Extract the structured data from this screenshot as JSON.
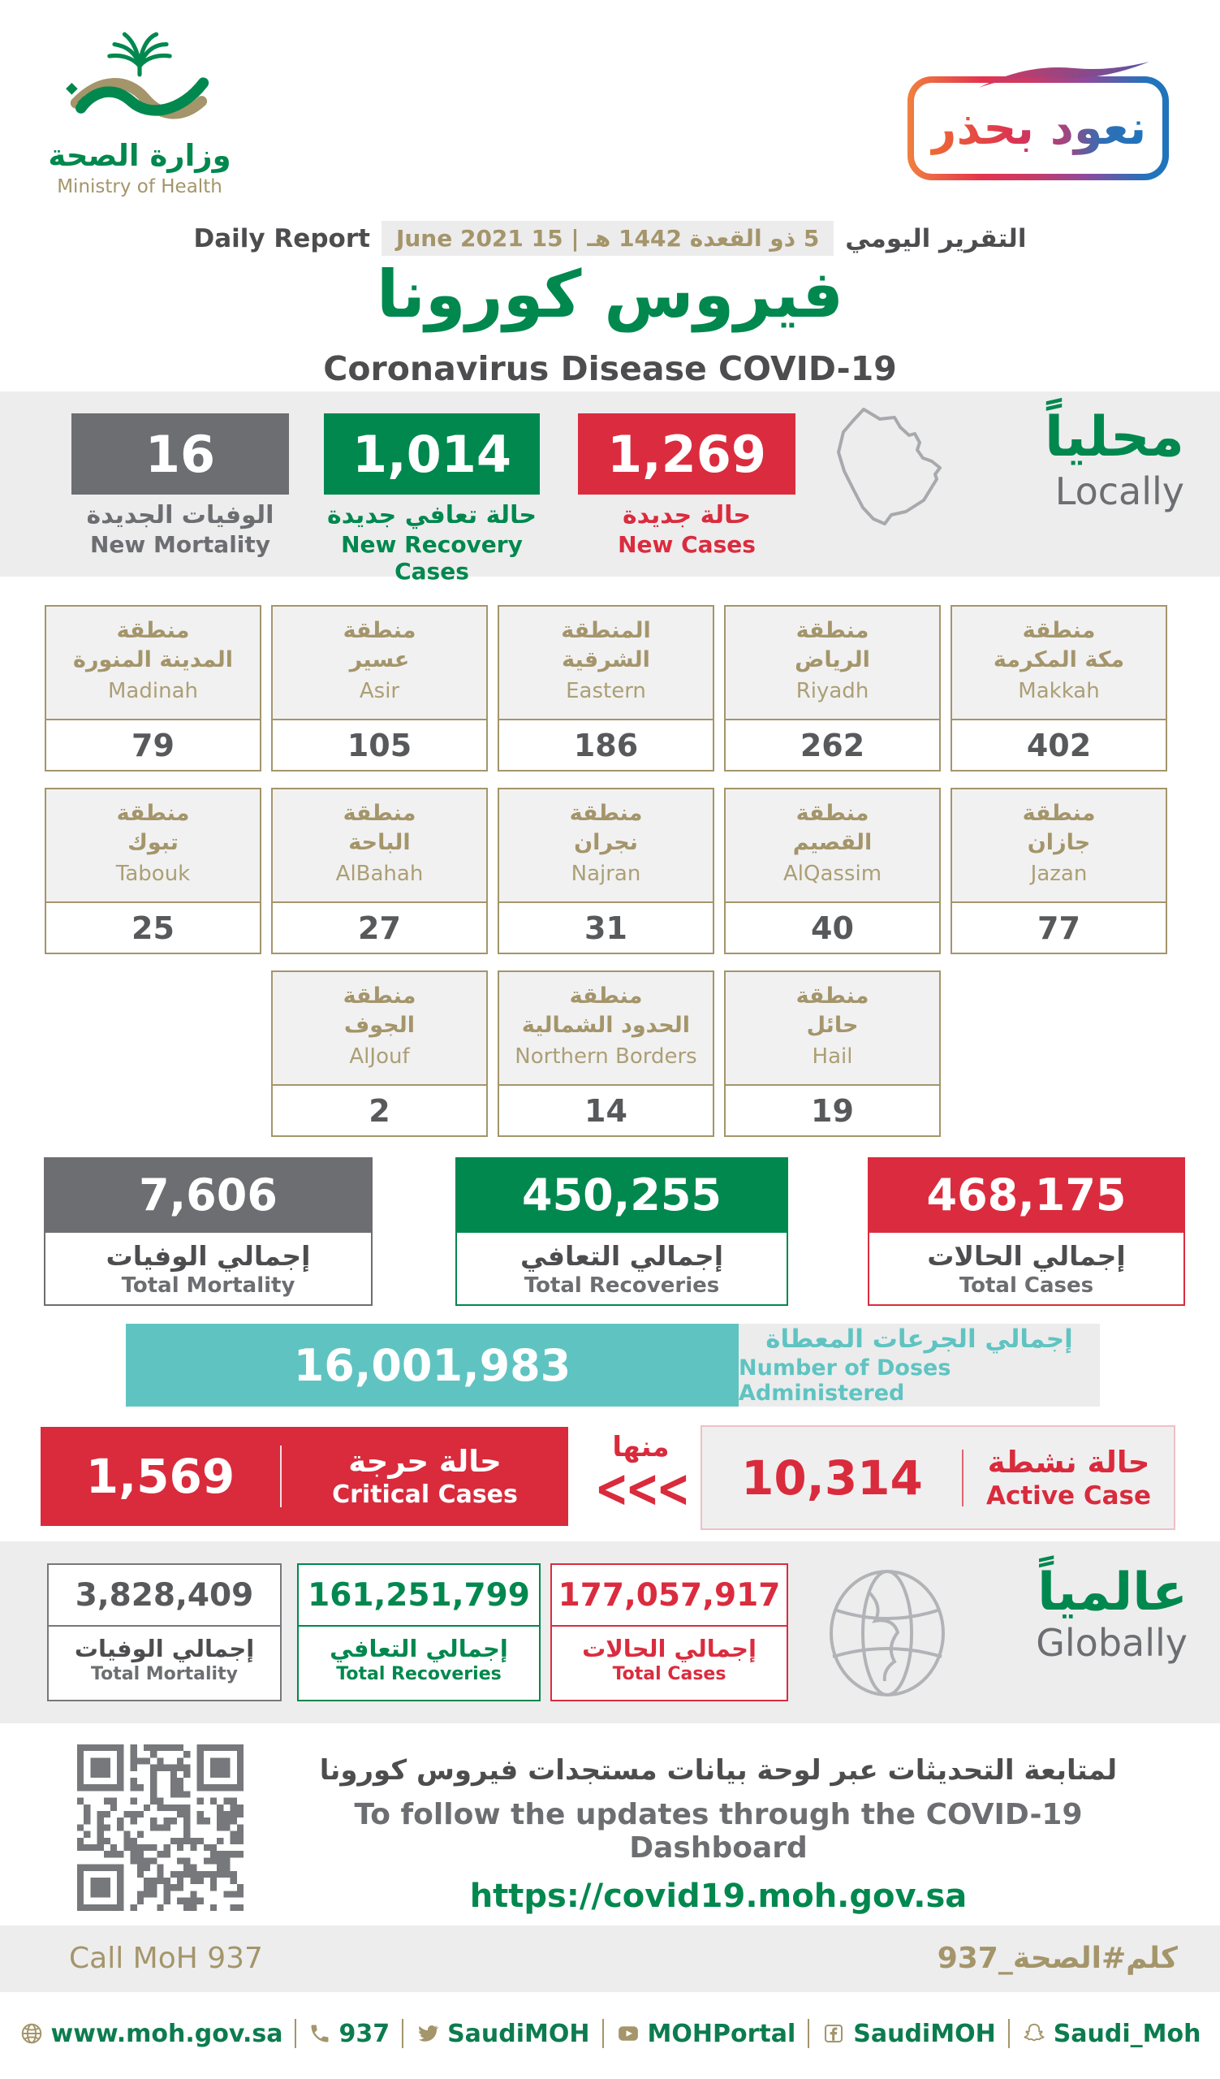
{
  "header": {
    "logo_ar": "وزارة الصحة",
    "logo_en": "Ministry of Health",
    "badge": "نعود بحذر",
    "report_label_en": "Daily Report",
    "report_date": "5 ذو القعدة 1442 هـ | 15 June 2021",
    "report_label_ar": "التقرير اليومي",
    "title_ar": "فيروس كورونا",
    "title_en": "Coronavirus Disease COVID-19"
  },
  "locally": {
    "label_ar": "محلياً",
    "label_en": "Locally",
    "stats": [
      {
        "value": "16",
        "label_ar": "الوفيات الجديدة",
        "label_en": "New Mortality"
      },
      {
        "value": "1,014",
        "label_ar": "حالة تعافي جديدة",
        "label_en": "New Recovery Cases"
      },
      {
        "value": "1,269",
        "label_ar": "حالة جديدة",
        "label_en": "New Cases"
      }
    ]
  },
  "regions": [
    {
      "ar1": "منطقة",
      "ar2": "المدينة المنورة",
      "en": "Madinah",
      "value": "79"
    },
    {
      "ar1": "منطقة",
      "ar2": "عسير",
      "en": "Asir",
      "value": "105"
    },
    {
      "ar1": "المنطقة",
      "ar2": "الشرقية",
      "en": "Eastern",
      "value": "186"
    },
    {
      "ar1": "منطقة",
      "ar2": "الرياض",
      "en": "Riyadh",
      "value": "262"
    },
    {
      "ar1": "منطقة",
      "ar2": "مكة المكرمة",
      "en": "Makkah",
      "value": "402"
    },
    {
      "ar1": "منطقة",
      "ar2": "تبوك",
      "en": "Tabouk",
      "value": "25"
    },
    {
      "ar1": "منطقة",
      "ar2": "الباحة",
      "en": "AlBahah",
      "value": "27"
    },
    {
      "ar1": "منطقة",
      "ar2": "نجران",
      "en": "Najran",
      "value": "31"
    },
    {
      "ar1": "منطقة",
      "ar2": "القصيم",
      "en": "AlQassim",
      "value": "40"
    },
    {
      "ar1": "منطقة",
      "ar2": "جازان",
      "en": "Jazan",
      "value": "77"
    },
    {
      "ar1": "منطقة",
      "ar2": "الجوف",
      "en": "AlJouf",
      "value": "2"
    },
    {
      "ar1": "منطقة",
      "ar2": "الحدود الشمالية",
      "en": "Northern Borders",
      "value": "14"
    },
    {
      "ar1": "منطقة",
      "ar2": "حائل",
      "en": "Hail",
      "value": "19"
    }
  ],
  "totals": [
    {
      "value": "7,606",
      "label_ar": "إجمالي الوفيات",
      "label_en": "Total Mortality"
    },
    {
      "value": "450,255",
      "label_ar": "إجمالي التعافي",
      "label_en": "Total Recoveries"
    },
    {
      "value": "468,175",
      "label_ar": "إجمالي الحالات",
      "label_en": "Total Cases"
    }
  ],
  "doses": {
    "value": "16,001,983",
    "label_ar": "إجمالي الجرعات المعطاة",
    "label_en": "Number of Doses Administered"
  },
  "critical": {
    "value": "1,569",
    "label_ar": "حالة حرجة",
    "label_en": "Critical Cases",
    "of_which_ar": "منها",
    "chevrons": "<<<"
  },
  "active": {
    "value": "10,314",
    "label_ar": "حالة نشطة",
    "label_en": "Active Case"
  },
  "globally": {
    "label_ar": "عالمياً",
    "label_en": "Globally",
    "cards": [
      {
        "value": "3,828,409",
        "label_ar": "إجمالي الوفيات",
        "label_en": "Total Mortality"
      },
      {
        "value": "161,251,799",
        "label_ar": "إجمالي التعافي",
        "label_en": "Total Recoveries"
      },
      {
        "value": "177,057,917",
        "label_ar": "إجمالي الحالات",
        "label_en": "Total Cases"
      }
    ]
  },
  "dashboard": {
    "line_ar": "لمتابعة التحديثات عبر لوحة بيانات مستجدات فيروس كورونا",
    "line_en": "To follow the updates through the COVID-19 Dashboard",
    "url": "https://covid19.moh.gov.sa"
  },
  "hotline": {
    "left": "Call MoH 937",
    "right": "كلم#الصحة_937"
  },
  "social": {
    "items": [
      {
        "icon": "globe-icon",
        "label": "www.moh.gov.sa"
      },
      {
        "icon": "phone-icon",
        "label": "937"
      },
      {
        "icon": "twitter-icon",
        "label": "SaudiMOH"
      },
      {
        "icon": "youtube-icon",
        "label": "MOHPortal"
      },
      {
        "icon": "facebook-icon",
        "label": "SaudiMOH"
      },
      {
        "icon": "snapchat-icon",
        "label": "Saudi_Moh"
      }
    ]
  },
  "colors": {
    "green": "#00884E",
    "red": "#DA2C3E",
    "gray": "#6D6E71",
    "gold": "#A4956A",
    "teal": "#5FC4C1",
    "band_gray": "#EDEDEE",
    "footer_green": "#0C7C4E"
  }
}
